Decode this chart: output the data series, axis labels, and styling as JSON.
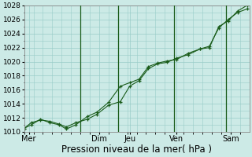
{
  "title": "",
  "xlabel": "Pression niveau de la mer( hPa )",
  "ylabel": "",
  "background_color": "#cceae6",
  "grid_color": "#99ccc8",
  "line_color": "#1a5c1a",
  "marker_color": "#1a5c1a",
  "ylim": [
    1010,
    1028
  ],
  "ylim_display": [
    1010,
    1028
  ],
  "yticks": [
    1010,
    1012,
    1014,
    1016,
    1018,
    1020,
    1022,
    1024,
    1026,
    1028
  ],
  "xlim": [
    0,
    9.6
  ],
  "day_labels": [
    "Mer",
    "Dim",
    "Jeu",
    "Ven",
    "Sam"
  ],
  "day_positions": [
    0.2,
    3.2,
    4.5,
    6.5,
    8.8
  ],
  "vline_positions": [
    2.4,
    4.0,
    6.4,
    8.6
  ],
  "series1_x": [
    0.0,
    0.3,
    0.7,
    1.1,
    1.5,
    1.8,
    2.2,
    2.7,
    3.1,
    3.6,
    4.1,
    4.5,
    4.9,
    5.3,
    5.7,
    6.1,
    6.5,
    7.0,
    7.5,
    7.9,
    8.3,
    8.7,
    9.1,
    9.5
  ],
  "series1_y": [
    1010.5,
    1011.3,
    1011.7,
    1011.5,
    1011.1,
    1010.7,
    1011.3,
    1011.8,
    1012.5,
    1013.8,
    1014.3,
    1016.5,
    1017.3,
    1019.0,
    1019.7,
    1019.9,
    1020.5,
    1021.0,
    1021.8,
    1022.2,
    1024.8,
    1026.0,
    1027.0,
    1027.5
  ],
  "series2_x": [
    0.0,
    0.3,
    0.7,
    1.1,
    1.5,
    1.8,
    2.2,
    2.7,
    3.1,
    3.6,
    4.1,
    4.5,
    4.9,
    5.3,
    5.7,
    6.1,
    6.5,
    7.0,
    7.5,
    7.9,
    8.3,
    8.7,
    9.1,
    9.5
  ],
  "series2_y": [
    1010.5,
    1011.0,
    1011.8,
    1011.3,
    1011.0,
    1010.4,
    1011.0,
    1012.2,
    1012.8,
    1014.2,
    1016.5,
    1017.0,
    1017.5,
    1019.3,
    1019.8,
    1020.1,
    1020.3,
    1021.2,
    1021.8,
    1022.0,
    1025.0,
    1025.8,
    1027.2,
    1028.0
  ],
  "vline_color": "#1a5c1a",
  "xlabel_fontsize": 8.5,
  "tick_fontsize": 6.5,
  "day_tick_fontsize": 7.0,
  "linewidth": 0.8,
  "markersize": 3.5,
  "markeredgewidth": 0.9
}
